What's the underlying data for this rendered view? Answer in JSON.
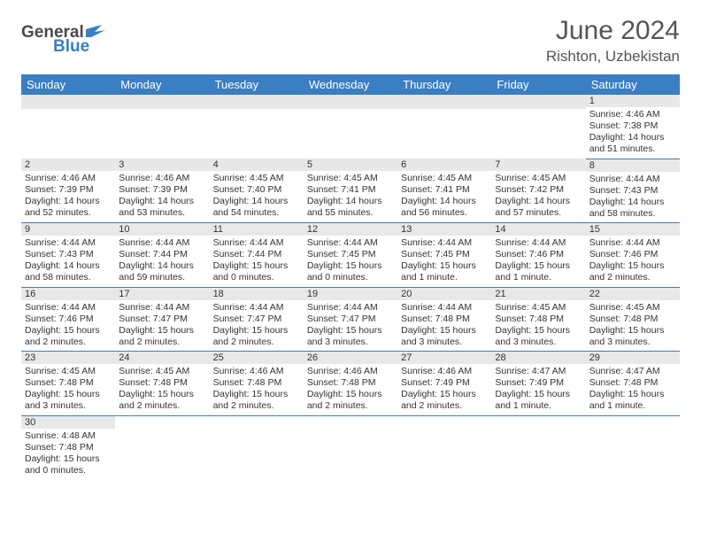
{
  "header": {
    "logo_general": "General",
    "logo_blue": "Blue",
    "month_title": "June 2024",
    "location": "Rishton, Uzbekistan"
  },
  "colors": {
    "header_bg": "#3b7ec1",
    "header_fg": "#ffffff",
    "daynum_bg": "#e8e8e8",
    "row_border": "#3b7ec1",
    "text": "#333333",
    "title_text": "#555555"
  },
  "day_headers": [
    "Sunday",
    "Monday",
    "Tuesday",
    "Wednesday",
    "Thursday",
    "Friday",
    "Saturday"
  ],
  "weeks": [
    [
      {
        "day": "",
        "sunrise": "",
        "sunset": "",
        "daylight": ""
      },
      {
        "day": "",
        "sunrise": "",
        "sunset": "",
        "daylight": ""
      },
      {
        "day": "",
        "sunrise": "",
        "sunset": "",
        "daylight": ""
      },
      {
        "day": "",
        "sunrise": "",
        "sunset": "",
        "daylight": ""
      },
      {
        "day": "",
        "sunrise": "",
        "sunset": "",
        "daylight": ""
      },
      {
        "day": "",
        "sunrise": "",
        "sunset": "",
        "daylight": ""
      },
      {
        "day": "1",
        "sunrise": "Sunrise: 4:46 AM",
        "sunset": "Sunset: 7:38 PM",
        "daylight": "Daylight: 14 hours and 51 minutes."
      }
    ],
    [
      {
        "day": "2",
        "sunrise": "Sunrise: 4:46 AM",
        "sunset": "Sunset: 7:39 PM",
        "daylight": "Daylight: 14 hours and 52 minutes."
      },
      {
        "day": "3",
        "sunrise": "Sunrise: 4:46 AM",
        "sunset": "Sunset: 7:39 PM",
        "daylight": "Daylight: 14 hours and 53 minutes."
      },
      {
        "day": "4",
        "sunrise": "Sunrise: 4:45 AM",
        "sunset": "Sunset: 7:40 PM",
        "daylight": "Daylight: 14 hours and 54 minutes."
      },
      {
        "day": "5",
        "sunrise": "Sunrise: 4:45 AM",
        "sunset": "Sunset: 7:41 PM",
        "daylight": "Daylight: 14 hours and 55 minutes."
      },
      {
        "day": "6",
        "sunrise": "Sunrise: 4:45 AM",
        "sunset": "Sunset: 7:41 PM",
        "daylight": "Daylight: 14 hours and 56 minutes."
      },
      {
        "day": "7",
        "sunrise": "Sunrise: 4:45 AM",
        "sunset": "Sunset: 7:42 PM",
        "daylight": "Daylight: 14 hours and 57 minutes."
      },
      {
        "day": "8",
        "sunrise": "Sunrise: 4:44 AM",
        "sunset": "Sunset: 7:43 PM",
        "daylight": "Daylight: 14 hours and 58 minutes."
      }
    ],
    [
      {
        "day": "9",
        "sunrise": "Sunrise: 4:44 AM",
        "sunset": "Sunset: 7:43 PM",
        "daylight": "Daylight: 14 hours and 58 minutes."
      },
      {
        "day": "10",
        "sunrise": "Sunrise: 4:44 AM",
        "sunset": "Sunset: 7:44 PM",
        "daylight": "Daylight: 14 hours and 59 minutes."
      },
      {
        "day": "11",
        "sunrise": "Sunrise: 4:44 AM",
        "sunset": "Sunset: 7:44 PM",
        "daylight": "Daylight: 15 hours and 0 minutes."
      },
      {
        "day": "12",
        "sunrise": "Sunrise: 4:44 AM",
        "sunset": "Sunset: 7:45 PM",
        "daylight": "Daylight: 15 hours and 0 minutes."
      },
      {
        "day": "13",
        "sunrise": "Sunrise: 4:44 AM",
        "sunset": "Sunset: 7:45 PM",
        "daylight": "Daylight: 15 hours and 1 minute."
      },
      {
        "day": "14",
        "sunrise": "Sunrise: 4:44 AM",
        "sunset": "Sunset: 7:46 PM",
        "daylight": "Daylight: 15 hours and 1 minute."
      },
      {
        "day": "15",
        "sunrise": "Sunrise: 4:44 AM",
        "sunset": "Sunset: 7:46 PM",
        "daylight": "Daylight: 15 hours and 2 minutes."
      }
    ],
    [
      {
        "day": "16",
        "sunrise": "Sunrise: 4:44 AM",
        "sunset": "Sunset: 7:46 PM",
        "daylight": "Daylight: 15 hours and 2 minutes."
      },
      {
        "day": "17",
        "sunrise": "Sunrise: 4:44 AM",
        "sunset": "Sunset: 7:47 PM",
        "daylight": "Daylight: 15 hours and 2 minutes."
      },
      {
        "day": "18",
        "sunrise": "Sunrise: 4:44 AM",
        "sunset": "Sunset: 7:47 PM",
        "daylight": "Daylight: 15 hours and 2 minutes."
      },
      {
        "day": "19",
        "sunrise": "Sunrise: 4:44 AM",
        "sunset": "Sunset: 7:47 PM",
        "daylight": "Daylight: 15 hours and 3 minutes."
      },
      {
        "day": "20",
        "sunrise": "Sunrise: 4:44 AM",
        "sunset": "Sunset: 7:48 PM",
        "daylight": "Daylight: 15 hours and 3 minutes."
      },
      {
        "day": "21",
        "sunrise": "Sunrise: 4:45 AM",
        "sunset": "Sunset: 7:48 PM",
        "daylight": "Daylight: 15 hours and 3 minutes."
      },
      {
        "day": "22",
        "sunrise": "Sunrise: 4:45 AM",
        "sunset": "Sunset: 7:48 PM",
        "daylight": "Daylight: 15 hours and 3 minutes."
      }
    ],
    [
      {
        "day": "23",
        "sunrise": "Sunrise: 4:45 AM",
        "sunset": "Sunset: 7:48 PM",
        "daylight": "Daylight: 15 hours and 3 minutes."
      },
      {
        "day": "24",
        "sunrise": "Sunrise: 4:45 AM",
        "sunset": "Sunset: 7:48 PM",
        "daylight": "Daylight: 15 hours and 2 minutes."
      },
      {
        "day": "25",
        "sunrise": "Sunrise: 4:46 AM",
        "sunset": "Sunset: 7:48 PM",
        "daylight": "Daylight: 15 hours and 2 minutes."
      },
      {
        "day": "26",
        "sunrise": "Sunrise: 4:46 AM",
        "sunset": "Sunset: 7:48 PM",
        "daylight": "Daylight: 15 hours and 2 minutes."
      },
      {
        "day": "27",
        "sunrise": "Sunrise: 4:46 AM",
        "sunset": "Sunset: 7:49 PM",
        "daylight": "Daylight: 15 hours and 2 minutes."
      },
      {
        "day": "28",
        "sunrise": "Sunrise: 4:47 AM",
        "sunset": "Sunset: 7:49 PM",
        "daylight": "Daylight: 15 hours and 1 minute."
      },
      {
        "day": "29",
        "sunrise": "Sunrise: 4:47 AM",
        "sunset": "Sunset: 7:48 PM",
        "daylight": "Daylight: 15 hours and 1 minute."
      }
    ],
    [
      {
        "day": "30",
        "sunrise": "Sunrise: 4:48 AM",
        "sunset": "Sunset: 7:48 PM",
        "daylight": "Daylight: 15 hours and 0 minutes."
      },
      {
        "day": "",
        "sunrise": "",
        "sunset": "",
        "daylight": ""
      },
      {
        "day": "",
        "sunrise": "",
        "sunset": "",
        "daylight": ""
      },
      {
        "day": "",
        "sunrise": "",
        "sunset": "",
        "daylight": ""
      },
      {
        "day": "",
        "sunrise": "",
        "sunset": "",
        "daylight": ""
      },
      {
        "day": "",
        "sunrise": "",
        "sunset": "",
        "daylight": ""
      },
      {
        "day": "",
        "sunrise": "",
        "sunset": "",
        "daylight": ""
      }
    ]
  ]
}
